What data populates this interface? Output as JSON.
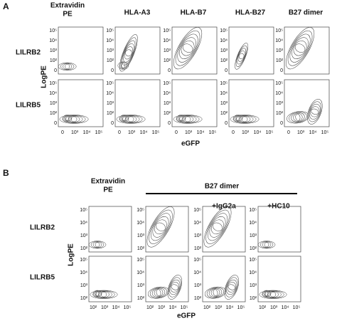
{
  "panel_a": {
    "letter": "A",
    "column_headers": [
      [
        "Extravidin",
        "PE"
      ],
      [
        "HLA-A3"
      ],
      [
        "HLA-B7"
      ],
      [
        "HLA-B27"
      ],
      [
        "B27 dimer"
      ]
    ],
    "row_labels": [
      "LILRB2",
      "LILRB5"
    ],
    "y_axis_label": "LogPE",
    "x_axis_label": "eGFP",
    "y_ticks": [
      "10⁵",
      "10⁴",
      "10³",
      "10²",
      "0"
    ],
    "x_ticks": [
      "0",
      "10³",
      "10⁴",
      "10⁵"
    ]
  },
  "panel_b": {
    "letter": "B",
    "column_header": [
      "Extravidin",
      "PE"
    ],
    "group_header": "B27 dimer",
    "sub_headers": [
      "+IgG2a",
      "+HC10"
    ],
    "row_labels": [
      "LILRB2",
      "LILRB5"
    ],
    "y_axis_label": "LogPE",
    "x_axis_label": "eGFP",
    "y_ticks": [
      "10⁵",
      "10⁴",
      "10³",
      "10²"
    ],
    "x_ticks": [
      "10²",
      "10³",
      "10⁴",
      "10⁵"
    ]
  }
}
